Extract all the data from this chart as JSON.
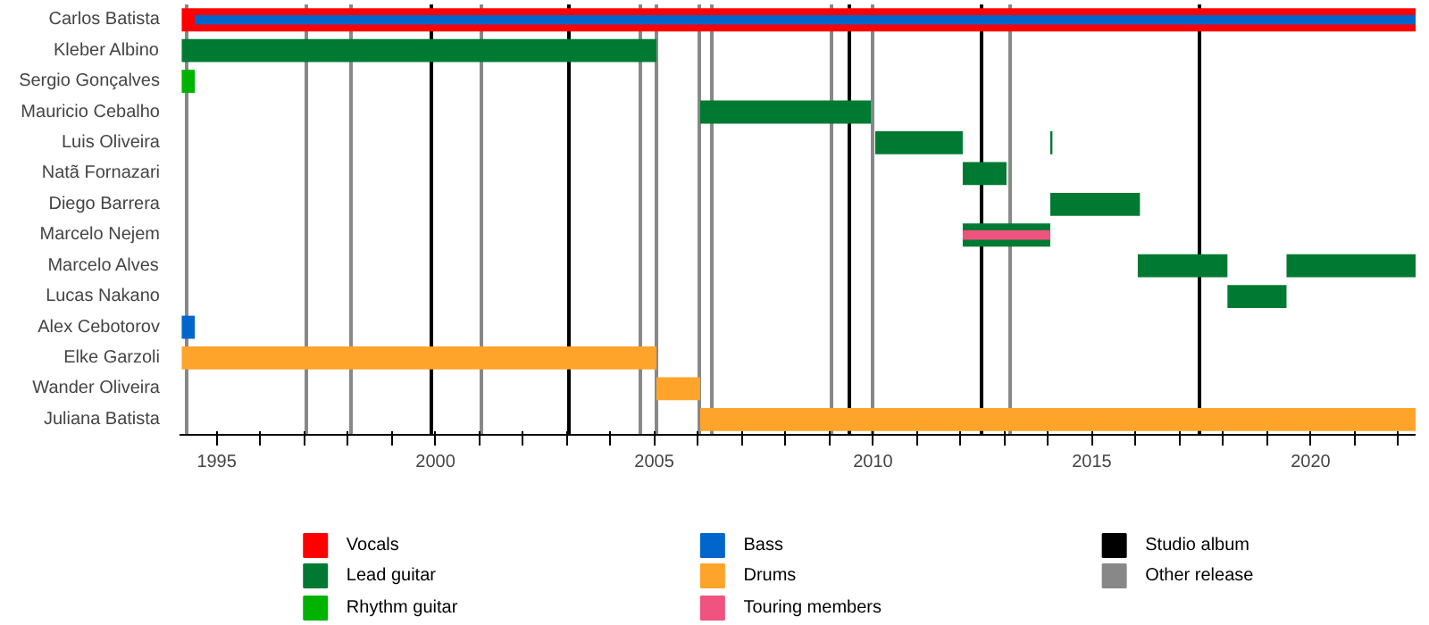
{
  "chart_data": {
    "type": "bar",
    "orientation": "horizontal",
    "categories": [
      "Carlos Batista",
      "Kleber Albino",
      "Sergio Gonçalves",
      "Mauricio Cebalho",
      "Luis Oliveira",
      "Natã Fornazari",
      "Diego Barrera",
      "Marcelo Nejem",
      "Marcelo Alves",
      "Lucas Nakano",
      "Alex Cebotorov",
      "Elke Garzoli",
      "Wander Oliveira",
      "Juliana Batista"
    ],
    "series": [
      {
        "name": "Vocals",
        "color": "#ff0000",
        "base": [
          1994.2,
          null,
          null,
          null,
          null,
          null,
          null,
          null,
          null,
          null,
          null,
          null,
          null,
          null
        ],
        "values": [
          28.2,
          null,
          null,
          null,
          null,
          null,
          null,
          null,
          null,
          null,
          null,
          null,
          null,
          null
        ]
      },
      {
        "name": "Lead guitar",
        "color": "#007a33",
        "base": [
          null,
          1994.2,
          null,
          2006.05,
          2010.05,
          2012.05,
          2014.05,
          2012.05,
          2016.05,
          2018.1,
          null,
          null,
          null,
          null
        ],
        "values": [
          null,
          10.85,
          null,
          3.9,
          2.0,
          1.0,
          2.05,
          2.0,
          2.05,
          1.35,
          null,
          null,
          null,
          null
        ]
      },
      {
        "color": "#007a33",
        "base": [
          null,
          null,
          null,
          null,
          2014.05,
          null,
          null,
          null,
          2019.45,
          null,
          null,
          null,
          null,
          null
        ],
        "values": [
          null,
          null,
          null,
          null,
          0.05,
          null,
          null,
          null,
          2.95,
          null,
          null,
          null,
          null,
          null
        ]
      },
      {
        "name": "Rhythm guitar",
        "color": "#00b300",
        "base": [
          null,
          null,
          1994.2,
          null,
          null,
          null,
          null,
          null,
          null,
          null,
          null,
          null,
          null,
          null
        ],
        "values": [
          null,
          null,
          0.3,
          null,
          null,
          null,
          null,
          null,
          null,
          null,
          null,
          null,
          null,
          null
        ]
      },
      {
        "name": "Bass",
        "color": "#0066cc",
        "base": [
          1994.5,
          null,
          null,
          null,
          null,
          null,
          null,
          null,
          null,
          null,
          1994.2,
          null,
          null,
          null
        ],
        "values": [
          27.9,
          null,
          null,
          null,
          null,
          null,
          null,
          null,
          null,
          null,
          0.3,
          null,
          null,
          null
        ]
      },
      {
        "name": "Drums",
        "color": "#ffa42a",
        "base": [
          null,
          null,
          null,
          null,
          null,
          null,
          null,
          null,
          null,
          null,
          null,
          1994.2,
          2005.05,
          2006.05
        ],
        "values": [
          null,
          null,
          null,
          null,
          null,
          null,
          null,
          null,
          null,
          null,
          null,
          10.85,
          1.0,
          16.35
        ]
      },
      {
        "name": "Touring members",
        "color": "#f0537f",
        "base": [
          null,
          null,
          null,
          null,
          null,
          null,
          null,
          2012.05,
          null,
          null,
          null,
          null,
          null,
          null
        ],
        "values": [
          null,
          null,
          null,
          null,
          null,
          null,
          null,
          2.0,
          null,
          null,
          null,
          null,
          null,
          null
        ]
      }
    ],
    "ref_lines": [
      {
        "axis": "x",
        "value": 1999.9,
        "label": "Studio album",
        "color": "#000000"
      },
      {
        "axis": "x",
        "value": 2003.05,
        "color": "#000000"
      },
      {
        "axis": "x",
        "value": 2009.45,
        "color": "#000000"
      },
      {
        "axis": "x",
        "value": 2012.5,
        "color": "#000000"
      },
      {
        "axis": "x",
        "value": 2017.45,
        "color": "#000000"
      },
      {
        "axis": "x",
        "value": 1994.3,
        "label": "Other release",
        "color": "#888888"
      },
      {
        "axis": "x",
        "value": 1997.05,
        "color": "#888888"
      },
      {
        "axis": "x",
        "value": 1998.05,
        "color": "#888888"
      },
      {
        "axis": "x",
        "value": 2001.05,
        "color": "#888888"
      },
      {
        "axis": "x",
        "value": 2004.7,
        "color": "#888888"
      },
      {
        "axis": "x",
        "value": 2005.05,
        "color": "#888888"
      },
      {
        "axis": "x",
        "value": 2006.05,
        "color": "#888888"
      },
      {
        "axis": "x",
        "value": 2006.3,
        "color": "#888888"
      },
      {
        "axis": "x",
        "value": 2009.05,
        "color": "#888888"
      },
      {
        "axis": "x",
        "value": 2010.0,
        "color": "#888888"
      },
      {
        "axis": "x",
        "value": 2013.15,
        "color": "#888888"
      }
    ],
    "xlim": [
      1994.15,
      2022.4
    ],
    "xticks": [
      {
        "value": 1995,
        "label": "1995"
      },
      {
        "value": 1996,
        "label": null
      },
      {
        "value": 1997,
        "label": null
      },
      {
        "value": 1998,
        "label": null
      },
      {
        "value": 1999,
        "label": null
      },
      {
        "value": 2000,
        "label": "2000"
      },
      {
        "value": 2001,
        "label": null
      },
      {
        "value": 2002,
        "label": null
      },
      {
        "value": 2003,
        "label": null
      },
      {
        "value": 2004,
        "label": null
      },
      {
        "value": 2005,
        "label": "2005"
      },
      {
        "value": 2006,
        "label": null
      },
      {
        "value": 2007,
        "label": null
      },
      {
        "value": 2008,
        "label": null
      },
      {
        "value": 2009,
        "label": null
      },
      {
        "value": 2010,
        "label": "2010"
      },
      {
        "value": 2011,
        "label": null
      },
      {
        "value": 2012,
        "label": null
      },
      {
        "value": 2013,
        "label": null
      },
      {
        "value": 2014,
        "label": null
      },
      {
        "value": 2015,
        "label": "2015"
      },
      {
        "value": 2016,
        "label": null
      },
      {
        "value": 2017,
        "label": null
      },
      {
        "value": 2018,
        "label": null
      },
      {
        "value": 2019,
        "label": null
      },
      {
        "value": 2020,
        "label": "2020"
      },
      {
        "value": 2021,
        "label": null
      },
      {
        "value": 2022,
        "label": null
      }
    ],
    "legend": "bottom",
    "grid": false
  }
}
